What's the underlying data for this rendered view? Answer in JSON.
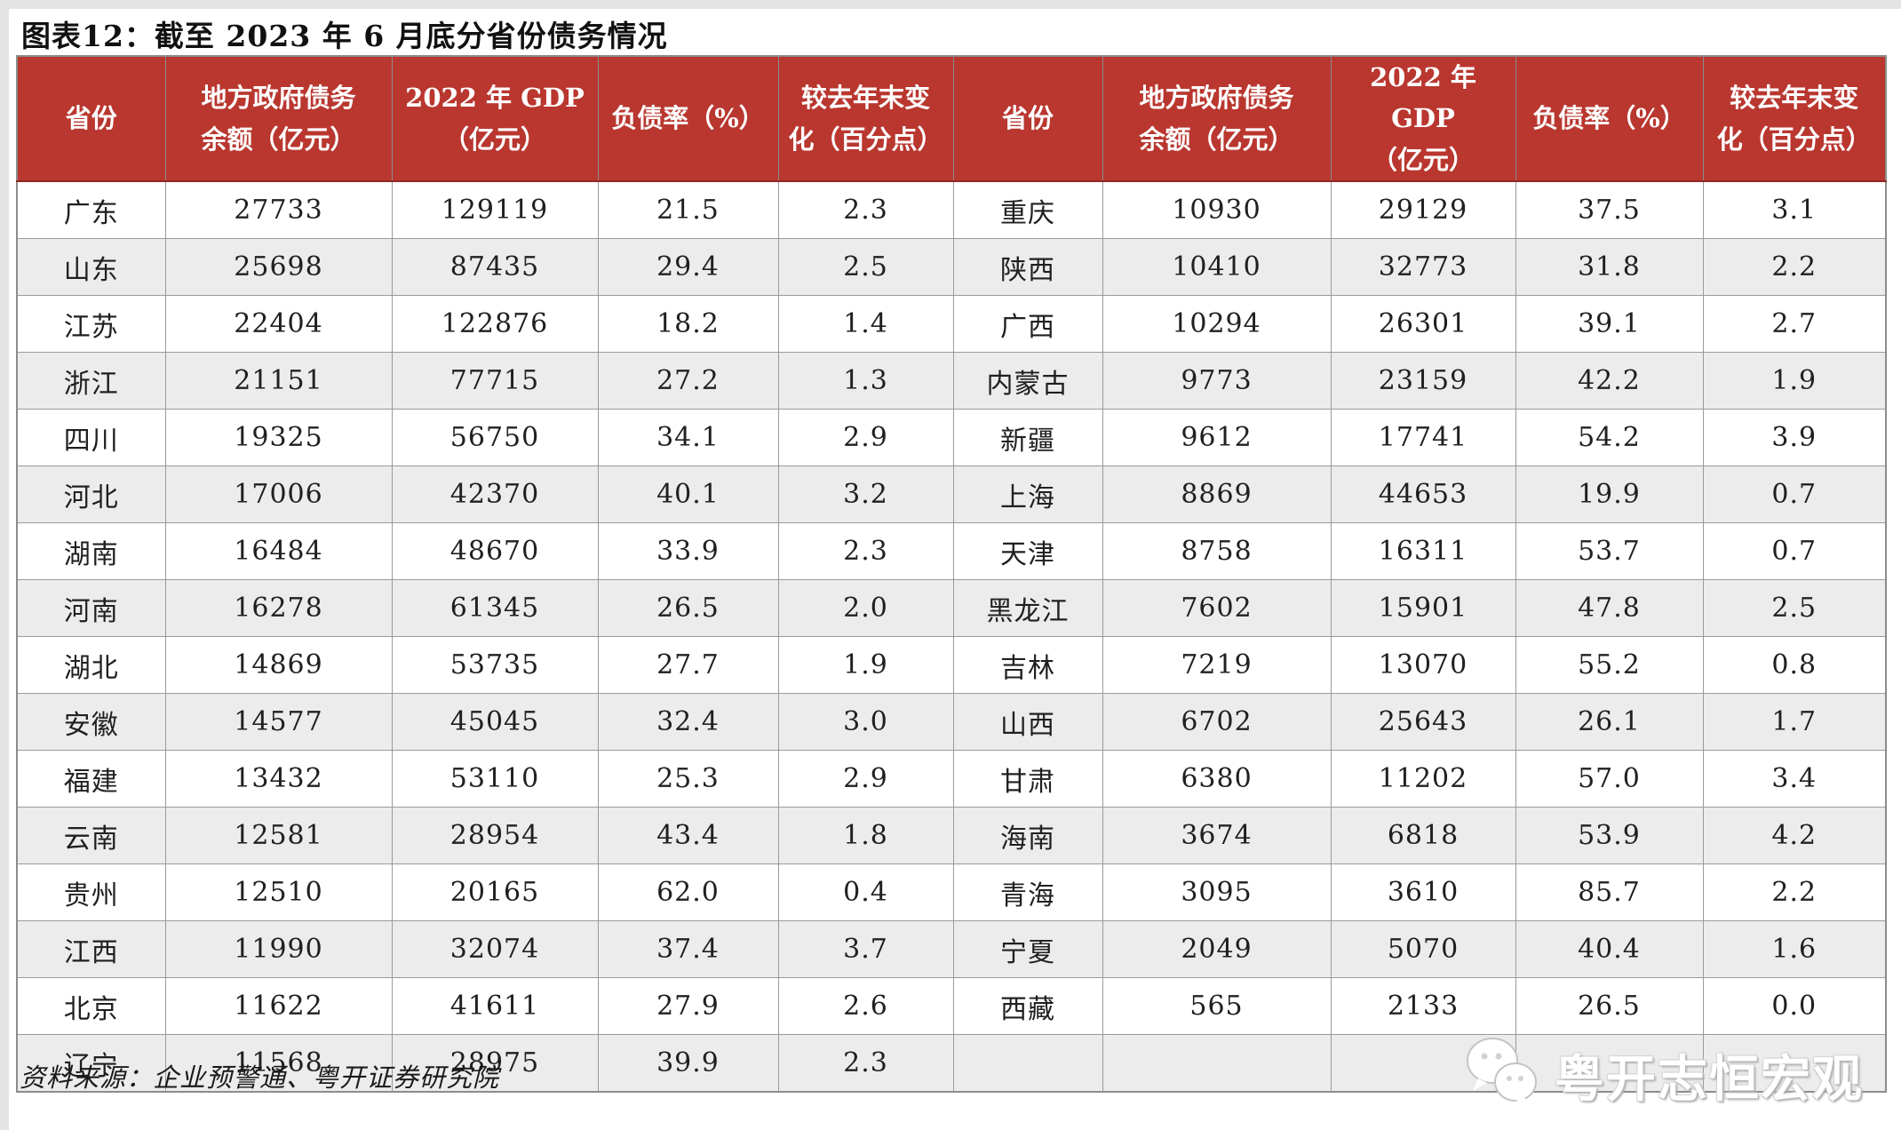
{
  "title": "图表12：截至 2023 年 6 月底分省份债务情况",
  "table": {
    "headers": [
      [
        "省份"
      ],
      [
        "地方政府债务",
        "余额（亿元）"
      ],
      [
        "2022 年 GDP",
        "（亿元）"
      ],
      [
        "负债率（%）"
      ],
      [
        "较去年末变",
        "化（百分点）"
      ]
    ],
    "left_rows": [
      {
        "province": "广东",
        "debt": "27733",
        "gdp": "129119",
        "ratio": "21.5",
        "change": "2.3"
      },
      {
        "province": "山东",
        "debt": "25698",
        "gdp": "87435",
        "ratio": "29.4",
        "change": "2.5"
      },
      {
        "province": "江苏",
        "debt": "22404",
        "gdp": "122876",
        "ratio": "18.2",
        "change": "1.4"
      },
      {
        "province": "浙江",
        "debt": "21151",
        "gdp": "77715",
        "ratio": "27.2",
        "change": "1.3"
      },
      {
        "province": "四川",
        "debt": "19325",
        "gdp": "56750",
        "ratio": "34.1",
        "change": "2.9"
      },
      {
        "province": "河北",
        "debt": "17006",
        "gdp": "42370",
        "ratio": "40.1",
        "change": "3.2"
      },
      {
        "province": "湖南",
        "debt": "16484",
        "gdp": "48670",
        "ratio": "33.9",
        "change": "2.3"
      },
      {
        "province": "河南",
        "debt": "16278",
        "gdp": "61345",
        "ratio": "26.5",
        "change": "2.0"
      },
      {
        "province": "湖北",
        "debt": "14869",
        "gdp": "53735",
        "ratio": "27.7",
        "change": "1.9"
      },
      {
        "province": "安徽",
        "debt": "14577",
        "gdp": "45045",
        "ratio": "32.4",
        "change": "3.0"
      },
      {
        "province": "福建",
        "debt": "13432",
        "gdp": "53110",
        "ratio": "25.3",
        "change": "2.9"
      },
      {
        "province": "云南",
        "debt": "12581",
        "gdp": "28954",
        "ratio": "43.4",
        "change": "1.8"
      },
      {
        "province": "贵州",
        "debt": "12510",
        "gdp": "20165",
        "ratio": "62.0",
        "change": "0.4"
      },
      {
        "province": "江西",
        "debt": "11990",
        "gdp": "32074",
        "ratio": "37.4",
        "change": "3.7"
      },
      {
        "province": "北京",
        "debt": "11622",
        "gdp": "41611",
        "ratio": "27.9",
        "change": "2.6"
      },
      {
        "province": "辽宁",
        "debt": "11568",
        "gdp": "28975",
        "ratio": "39.9",
        "change": "2.3"
      }
    ],
    "right_rows": [
      {
        "province": "重庆",
        "debt": "10930",
        "gdp": "29129",
        "ratio": "37.5",
        "change": "3.1"
      },
      {
        "province": "陕西",
        "debt": "10410",
        "gdp": "32773",
        "ratio": "31.8",
        "change": "2.2"
      },
      {
        "province": "广西",
        "debt": "10294",
        "gdp": "26301",
        "ratio": "39.1",
        "change": "2.7"
      },
      {
        "province": "内蒙古",
        "debt": "9773",
        "gdp": "23159",
        "ratio": "42.2",
        "change": "1.9"
      },
      {
        "province": "新疆",
        "debt": "9612",
        "gdp": "17741",
        "ratio": "54.2",
        "change": "3.9"
      },
      {
        "province": "上海",
        "debt": "8869",
        "gdp": "44653",
        "ratio": "19.9",
        "change": "0.7"
      },
      {
        "province": "天津",
        "debt": "8758",
        "gdp": "16311",
        "ratio": "53.7",
        "change": "0.7"
      },
      {
        "province": "黑龙江",
        "debt": "7602",
        "gdp": "15901",
        "ratio": "47.8",
        "change": "2.5"
      },
      {
        "province": "吉林",
        "debt": "7219",
        "gdp": "13070",
        "ratio": "55.2",
        "change": "0.8"
      },
      {
        "province": "山西",
        "debt": "6702",
        "gdp": "25643",
        "ratio": "26.1",
        "change": "1.7"
      },
      {
        "province": "甘肃",
        "debt": "6380",
        "gdp": "11202",
        "ratio": "57.0",
        "change": "3.4"
      },
      {
        "province": "海南",
        "debt": "3674",
        "gdp": "6818",
        "ratio": "53.9",
        "change": "4.2"
      },
      {
        "province": "青海",
        "debt": "3095",
        "gdp": "3610",
        "ratio": "85.7",
        "change": "2.2"
      },
      {
        "province": "宁夏",
        "debt": "2049",
        "gdp": "5070",
        "ratio": "40.4",
        "change": "1.6"
      },
      {
        "province": "西藏",
        "debt": "565",
        "gdp": "2133",
        "ratio": "26.5",
        "change": "0.0"
      },
      {
        "province": "",
        "debt": "",
        "gdp": "",
        "ratio": "",
        "change": ""
      }
    ]
  },
  "source": "资料来源：企业预警通、粤开证券研究院",
  "watermark": {
    "icon": "wechat-icon",
    "text": "粤开志恒宏观"
  },
  "colors": {
    "header_bg": "#b9372f",
    "header_text": "#ffffff",
    "row_stripe": "#ececec",
    "border": "#8c8c8c",
    "body_text": "#202020"
  }
}
